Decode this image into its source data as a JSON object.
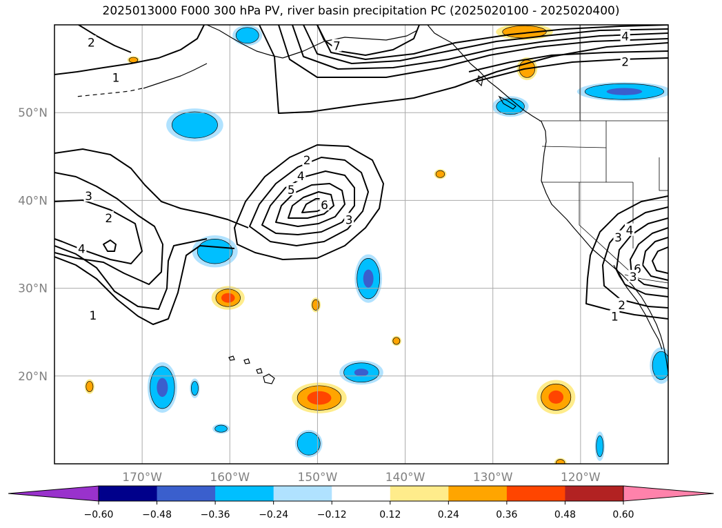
{
  "title": "2025013000 F000 300 hPa PV, river basin precipitation PC (2025020100 - 2025020400)",
  "map": {
    "lat_ticks": [
      {
        "lat": 50,
        "label": "50°N"
      },
      {
        "lat": 40,
        "label": "40°N"
      },
      {
        "lat": 30,
        "label": "30°N"
      },
      {
        "lat": 20,
        "label": "20°N"
      }
    ],
    "lon_ticks": [
      {
        "lon": -170,
        "label": "170°W"
      },
      {
        "lon": -160,
        "label": "160°W"
      },
      {
        "lon": -150,
        "label": "150°W"
      },
      {
        "lon": -140,
        "label": "140°W"
      },
      {
        "lon": -130,
        "label": "130°W"
      },
      {
        "lon": -120,
        "label": "120°W"
      }
    ],
    "extent": {
      "lon_min": -180,
      "lon_max": -110,
      "lat_min": 10,
      "lat_max": 60
    }
  },
  "colorbar": {
    "levels": [
      "−0.60",
      "−0.48",
      "−0.36",
      "−0.24",
      "−0.12",
      "0.12",
      "0.24",
      "0.36",
      "0.48",
      "0.60"
    ],
    "colors": [
      "#9932cc",
      "#00008b",
      "#3a5fcd",
      "#00bfff",
      "#b0e2ff",
      "#ffffff",
      "#ffec8b",
      "#ffa500",
      "#ff4500",
      "#b22222",
      "#ff82ab"
    ]
  },
  "pv_contour_labels": [
    {
      "text": "2",
      "lon": -175.8,
      "lat": 58.0
    },
    {
      "text": "1",
      "lon": -173.0,
      "lat": 54.0
    },
    {
      "text": "7",
      "lon": -147.8,
      "lat": 57.6
    },
    {
      "text": "4",
      "lon": -114.9,
      "lat": 58.7
    },
    {
      "text": "2",
      "lon": -114.9,
      "lat": 55.8
    },
    {
      "text": "2",
      "lon": -151.2,
      "lat": 44.6
    },
    {
      "text": "4",
      "lon": -151.9,
      "lat": 42.8
    },
    {
      "text": "5",
      "lon": -153.0,
      "lat": 41.2
    },
    {
      "text": "6",
      "lon": -149.2,
      "lat": 39.5
    },
    {
      "text": "3",
      "lon": -146.4,
      "lat": 37.8
    },
    {
      "text": "3",
      "lon": -176.1,
      "lat": 40.5
    },
    {
      "text": "2",
      "lon": -173.8,
      "lat": 38.0
    },
    {
      "text": "4",
      "lon": -176.9,
      "lat": 34.5
    },
    {
      "text": "1",
      "lon": -175.6,
      "lat": 26.9
    },
    {
      "text": "4",
      "lon": -114.4,
      "lat": 36.6
    },
    {
      "text": "3",
      "lon": -115.7,
      "lat": 35.8
    },
    {
      "text": "6",
      "lon": -113.5,
      "lat": 32.2
    },
    {
      "text": "3",
      "lon": -114.0,
      "lat": 31.3
    },
    {
      "text": "2",
      "lon": -115.3,
      "lat": 28.1
    },
    {
      "text": "1",
      "lon": -116.1,
      "lat": 26.8
    }
  ],
  "precip_patches": [
    {
      "lon": -164.0,
      "lat": 48.6,
      "rx": 2.6,
      "ry": 1.5,
      "levels": [
        {
          "c": "#b0e2ff",
          "s": 1.25
        },
        {
          "c": "#00bfff",
          "s": 1.0
        }
      ]
    },
    {
      "lon": -158.0,
      "lat": 58.8,
      "rx": 1.3,
      "ry": 0.9,
      "levels": [
        {
          "c": "#b0e2ff",
          "s": 1.3
        },
        {
          "c": "#00bfff",
          "s": 1.0
        }
      ]
    },
    {
      "lon": -161.7,
      "lat": 34.2,
      "rx": 2.0,
      "ry": 1.4,
      "levels": [
        {
          "c": "#b0e2ff",
          "s": 1.3
        },
        {
          "c": "#00bfff",
          "s": 1.0
        }
      ]
    },
    {
      "lon": -144.2,
      "lat": 31.1,
      "rx": 1.3,
      "ry": 2.3,
      "levels": [
        {
          "c": "#b0e2ff",
          "s": 1.2
        },
        {
          "c": "#00bfff",
          "s": 1.0
        },
        {
          "c": "#3a5fcd",
          "s": 0.45
        }
      ]
    },
    {
      "lon": -145.0,
      "lat": 20.4,
      "rx": 2.0,
      "ry": 1.1,
      "levels": [
        {
          "c": "#b0e2ff",
          "s": 1.25
        },
        {
          "c": "#00bfff",
          "s": 1.0
        },
        {
          "c": "#3a5fcd",
          "s": 0.4
        }
      ]
    },
    {
      "lon": -167.7,
      "lat": 18.7,
      "rx": 1.4,
      "ry": 2.4,
      "levels": [
        {
          "c": "#b0e2ff",
          "s": 1.2
        },
        {
          "c": "#00bfff",
          "s": 1.0
        },
        {
          "c": "#3a5fcd",
          "s": 0.45
        }
      ]
    },
    {
      "lon": -164.0,
      "lat": 18.6,
      "rx": 0.4,
      "ry": 0.8,
      "levels": [
        {
          "c": "#b0e2ff",
          "s": 1.4
        },
        {
          "c": "#00bfff",
          "s": 1.0
        }
      ]
    },
    {
      "lon": -161.0,
      "lat": 14.0,
      "rx": 0.7,
      "ry": 0.4,
      "levels": [
        {
          "c": "#b0e2ff",
          "s": 1.4
        },
        {
          "c": "#00bfff",
          "s": 1.0
        }
      ]
    },
    {
      "lon": -151.0,
      "lat": 12.3,
      "rx": 1.3,
      "ry": 1.3,
      "levels": [
        {
          "c": "#b0e2ff",
          "s": 1.2
        },
        {
          "c": "#00bfff",
          "s": 1.0
        }
      ]
    },
    {
      "lon": -128.0,
      "lat": 50.7,
      "rx": 1.6,
      "ry": 0.9,
      "levels": [
        {
          "c": "#b0e2ff",
          "s": 1.3
        },
        {
          "c": "#00bfff",
          "s": 1.0
        }
      ]
    },
    {
      "lon": -115.0,
      "lat": 52.4,
      "rx": 4.5,
      "ry": 0.9,
      "levels": [
        {
          "c": "#b0e2ff",
          "s": 1.2
        },
        {
          "c": "#00bfff",
          "s": 1.0
        },
        {
          "c": "#3a5fcd",
          "s": 0.45
        }
      ]
    },
    {
      "lon": -110.8,
      "lat": 21.2,
      "rx": 1.0,
      "ry": 1.6,
      "levels": [
        {
          "c": "#b0e2ff",
          "s": 1.3
        },
        {
          "c": "#00bfff",
          "s": 1.0
        }
      ]
    },
    {
      "lon": -117.8,
      "lat": 12.0,
      "rx": 0.4,
      "ry": 1.2,
      "levels": [
        {
          "c": "#b0e2ff",
          "s": 1.4
        },
        {
          "c": "#00bfff",
          "s": 1.0
        }
      ]
    },
    {
      "lon": -160.2,
      "lat": 28.9,
      "rx": 1.4,
      "ry": 1.0,
      "levels": [
        {
          "c": "#ffec8b",
          "s": 1.35
        },
        {
          "c": "#ffa500",
          "s": 1.0
        },
        {
          "c": "#ff4500",
          "s": 0.55
        }
      ]
    },
    {
      "lon": -149.8,
      "lat": 17.5,
      "rx": 2.5,
      "ry": 1.4,
      "levels": [
        {
          "c": "#ffec8b",
          "s": 1.25
        },
        {
          "c": "#ffa500",
          "s": 1.0
        },
        {
          "c": "#ff4500",
          "s": 0.55
        }
      ]
    },
    {
      "lon": -122.8,
      "lat": 17.6,
      "rx": 1.7,
      "ry": 1.5,
      "levels": [
        {
          "c": "#ffec8b",
          "s": 1.3
        },
        {
          "c": "#ffa500",
          "s": 1.0
        },
        {
          "c": "#ff4500",
          "s": 0.5
        }
      ]
    },
    {
      "lon": -126.4,
      "lat": 59.2,
      "rx": 2.5,
      "ry": 0.7,
      "levels": [
        {
          "c": "#ffec8b",
          "s": 1.3
        },
        {
          "c": "#ffa500",
          "s": 1.0
        }
      ]
    },
    {
      "lon": -126.1,
      "lat": 55.0,
      "rx": 0.9,
      "ry": 1.0,
      "levels": [
        {
          "c": "#ffec8b",
          "s": 1.3
        },
        {
          "c": "#ffa500",
          "s": 1.0
        }
      ]
    },
    {
      "lon": -136.0,
      "lat": 43.0,
      "rx": 0.5,
      "ry": 0.4,
      "levels": [
        {
          "c": "#ffec8b",
          "s": 1.4
        },
        {
          "c": "#ffa500",
          "s": 1.0
        }
      ]
    },
    {
      "lon": -150.2,
      "lat": 28.1,
      "rx": 0.4,
      "ry": 0.6,
      "levels": [
        {
          "c": "#ffec8b",
          "s": 1.4
        },
        {
          "c": "#ffa500",
          "s": 1.0
        }
      ]
    },
    {
      "lon": -141.0,
      "lat": 24.0,
      "rx": 0.4,
      "ry": 0.4,
      "levels": [
        {
          "c": "#ffec8b",
          "s": 1.4
        },
        {
          "c": "#ffa500",
          "s": 1.0
        }
      ]
    },
    {
      "lon": -176.0,
      "lat": 18.8,
      "rx": 0.4,
      "ry": 0.6,
      "levels": [
        {
          "c": "#ffec8b",
          "s": 1.4
        },
        {
          "c": "#ffa500",
          "s": 1.0
        }
      ]
    },
    {
      "lon": -171.0,
      "lat": 56.0,
      "rx": 0.5,
      "ry": 0.3,
      "levels": [
        {
          "c": "#ffec8b",
          "s": 1.4
        },
        {
          "c": "#ffa500",
          "s": 1.0
        }
      ]
    },
    {
      "lon": -122.3,
      "lat": 10.1,
      "rx": 0.5,
      "ry": 0.4,
      "levels": [
        {
          "c": "#ffec8b",
          "s": 1.4
        },
        {
          "c": "#ffa500",
          "s": 1.0
        }
      ]
    }
  ]
}
